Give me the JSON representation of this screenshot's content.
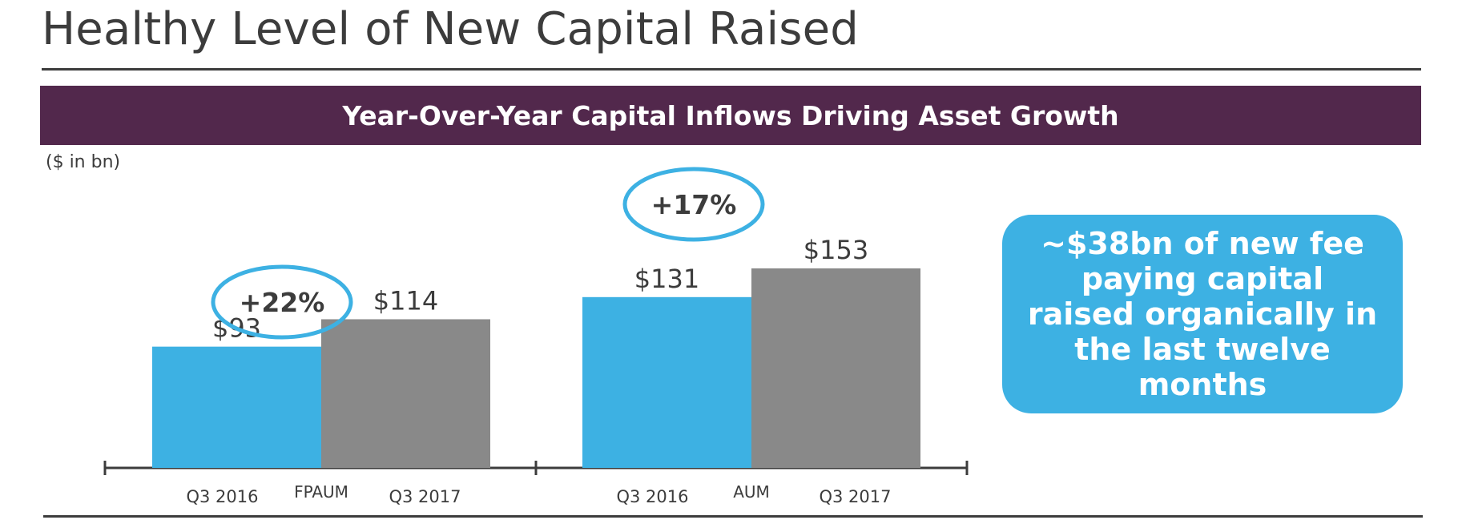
{
  "header": {
    "title": "Healthy Level of New Capital Raised",
    "banner": "Year-Over-Year Capital Inflows Driving Asset Growth"
  },
  "units": "($ in bn)",
  "callout": {
    "text": "~$38bn of new fee paying capital raised organically in the last twelve months"
  },
  "colors": {
    "q3_2016": "#3db1e3",
    "q3_2017": "#898989",
    "banner": "#52284c",
    "oval": "#3db1e3"
  },
  "chart_data": {
    "type": "bar",
    "ylim": [
      0,
      153
    ],
    "groups": [
      {
        "name": "FPAUM",
        "bars": [
          {
            "category": "Q3 2016",
            "value": 93,
            "label": "$93"
          },
          {
            "category": "Q3 2017",
            "value": 114,
            "label": "$114"
          }
        ],
        "growth": "+22%"
      },
      {
        "name": "AUM",
        "bars": [
          {
            "category": "Q3 2016",
            "value": 131,
            "label": "$131"
          },
          {
            "category": "Q3 2017",
            "value": 153,
            "label": "$153"
          }
        ],
        "growth": "+17%"
      }
    ]
  }
}
